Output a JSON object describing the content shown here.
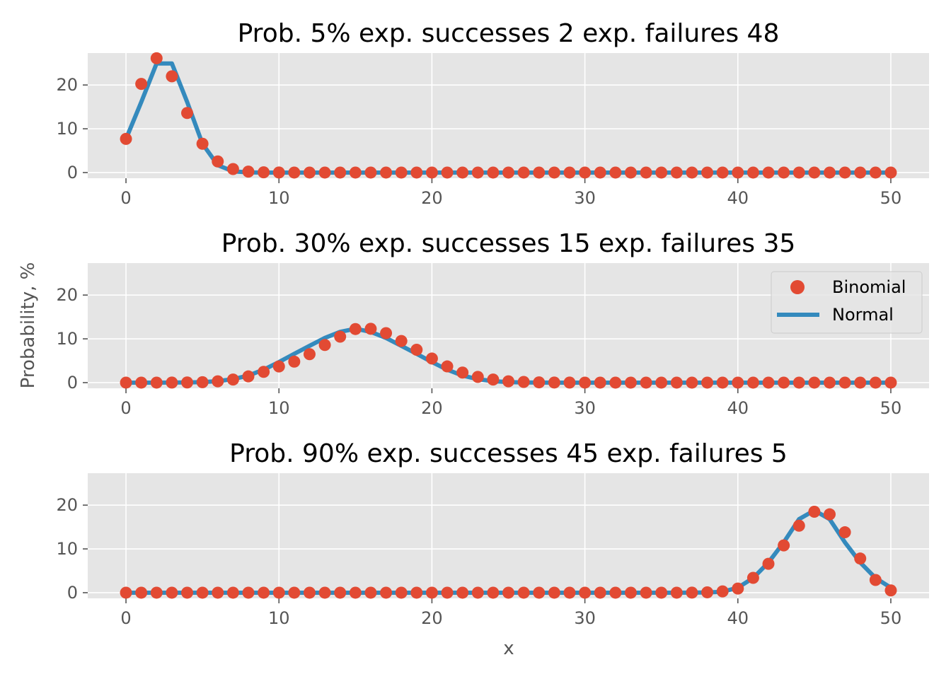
{
  "figure": {
    "ylabel": "Probability, %",
    "xlabel": "x"
  },
  "legend": {
    "placement": "upper-right of second subplot",
    "items": [
      {
        "label": "Binomial",
        "marker": "circle",
        "color": "#E24A33"
      },
      {
        "label": "Normal",
        "marker": "line",
        "color": "#348ABD"
      }
    ]
  },
  "style": {
    "background": "#E5E5E5",
    "grid": "#FFFFFF",
    "binomial_color": "#E24A33",
    "normal_color": "#348ABD"
  },
  "chart_data": [
    {
      "type": "scatter+line",
      "title": "Prob. 5% exp. successes 2 exp. failures 48",
      "xlim": [
        -2.5,
        52.5
      ],
      "ylim": [
        -1.3,
        27.3
      ],
      "xticks": [
        0,
        10,
        20,
        30,
        40,
        50
      ],
      "yticks": [
        0,
        10,
        20
      ],
      "grid": true,
      "series": [
        {
          "name": "Binomial",
          "type": "scatter",
          "x_start": 0,
          "x_step": 1,
          "values": [
            7.69,
            20.25,
            26.11,
            21.99,
            13.6,
            6.58,
            2.54,
            0.8,
            0.21,
            0.05,
            0.01,
            0,
            0,
            0,
            0,
            0,
            0,
            0,
            0,
            0,
            0,
            0,
            0,
            0,
            0,
            0,
            0,
            0,
            0,
            0,
            0,
            0,
            0,
            0,
            0,
            0,
            0,
            0,
            0,
            0,
            0,
            0,
            0,
            0,
            0,
            0,
            0,
            0,
            0,
            0,
            0
          ]
        },
        {
          "name": "Normal",
          "type": "line",
          "x_start": 0,
          "x_step": 1,
          "values": [
            7.68,
            16.11,
            24.92,
            24.92,
            16.11,
            6.58,
            1.69,
            0.28,
            0.03,
            0,
            0,
            0,
            0,
            0,
            0,
            0,
            0,
            0,
            0,
            0,
            0,
            0,
            0,
            0,
            0,
            0,
            0,
            0,
            0,
            0,
            0,
            0,
            0,
            0,
            0,
            0,
            0,
            0,
            0,
            0,
            0,
            0,
            0,
            0,
            0,
            0,
            0,
            0,
            0,
            0,
            0
          ]
        }
      ]
    },
    {
      "type": "scatter+line",
      "title": "Prob. 30% exp. successes 15 exp. failures 35",
      "xlim": [
        -2.5,
        52.5
      ],
      "ylim": [
        -1.3,
        27.3
      ],
      "xticks": [
        0,
        10,
        20,
        30,
        40,
        50
      ],
      "yticks": [
        0,
        10,
        20
      ],
      "grid": true,
      "series": [
        {
          "name": "Binomial",
          "type": "scatter",
          "x_start": 0,
          "x_step": 1,
          "values": [
            0,
            0,
            0,
            0.01,
            0.03,
            0.1,
            0.29,
            0.7,
            1.42,
            2.46,
            3.69,
            4.79,
            6.5,
            8.59,
            10.5,
            12.24,
            12.3,
            11.3,
            9.5,
            7.5,
            5.5,
            3.7,
            2.3,
            1.3,
            0.7,
            0.3,
            0.15,
            0.06,
            0.02,
            0.01,
            0,
            0,
            0,
            0,
            0,
            0,
            0,
            0,
            0,
            0,
            0,
            0,
            0,
            0,
            0,
            0,
            0,
            0,
            0,
            0,
            0
          ]
        },
        {
          "name": "Normal",
          "type": "line",
          "x_start": 0,
          "x_step": 1,
          "values": [
            0,
            0,
            0,
            0.01,
            0.04,
            0.12,
            0.33,
            0.78,
            1.62,
            2.95,
            4.7,
            6.58,
            8.4,
            10.2,
            11.6,
            12.3,
            11.6,
            10.2,
            8.4,
            6.58,
            4.7,
            2.95,
            1.62,
            0.78,
            0.33,
            0.12,
            0.04,
            0.01,
            0,
            0,
            0,
            0,
            0,
            0,
            0,
            0,
            0,
            0,
            0,
            0,
            0,
            0,
            0,
            0,
            0,
            0,
            0,
            0,
            0,
            0,
            0
          ]
        }
      ]
    },
    {
      "type": "scatter+line",
      "title": "Prob. 90% exp. successes 45 exp. failures 5",
      "xlim": [
        -2.5,
        52.5
      ],
      "ylim": [
        -1.3,
        27.3
      ],
      "xticks": [
        0,
        10,
        20,
        30,
        40,
        50
      ],
      "yticks": [
        0,
        10,
        20
      ],
      "grid": true,
      "series": [
        {
          "name": "Binomial",
          "type": "scatter",
          "x_start": 0,
          "x_step": 1,
          "values": [
            0,
            0,
            0,
            0,
            0,
            0,
            0,
            0,
            0,
            0,
            0,
            0,
            0,
            0,
            0,
            0,
            0,
            0,
            0,
            0,
            0,
            0,
            0,
            0,
            0,
            0,
            0,
            0,
            0,
            0,
            0,
            0,
            0,
            0,
            0,
            0,
            0,
            0.02,
            0.08,
            0.29,
            0.94,
            3.39,
            6.6,
            10.8,
            15.3,
            18.5,
            17.9,
            13.8,
            7.8,
            2.9,
            0.52
          ]
        },
        {
          "name": "Normal",
          "type": "line",
          "x_start": 0,
          "x_step": 1,
          "values": [
            0,
            0,
            0,
            0,
            0,
            0,
            0,
            0,
            0,
            0,
            0,
            0,
            0,
            0,
            0,
            0,
            0,
            0,
            0,
            0,
            0,
            0,
            0,
            0,
            0,
            0,
            0,
            0,
            0,
            0,
            0,
            0,
            0,
            0,
            0,
            0,
            0,
            0.01,
            0.05,
            0.21,
            1.14,
            3.35,
            6.9,
            11.5,
            16.8,
            18.8,
            16.8,
            11.5,
            6.9,
            3.35,
            1.14
          ]
        }
      ]
    }
  ]
}
